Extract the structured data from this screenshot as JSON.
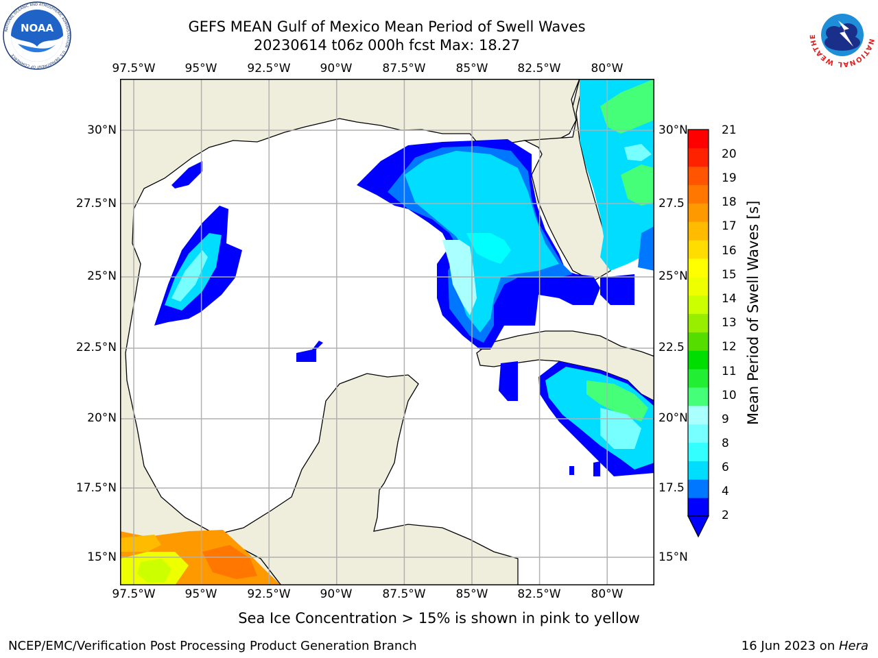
{
  "title_line1": "GEFS MEAN Gulf of Mexico Mean Period of Swell Waves",
  "title_line2": "20230614 t06z 000h fcst   Max: 18.27",
  "lon_labels": [
    "97.5°W",
    "95°W",
    "92.5°W",
    "90°W",
    "87.5°W",
    "85°W",
    "82.5°W",
    "80°W"
  ],
  "lat_labels_left": [
    "30°N",
    "27.5°N",
    "25°N",
    "22.5°N",
    "20°N",
    "17.5°N",
    "15°N"
  ],
  "lat_labels_right": [
    "30°N",
    "27.5",
    "25°N",
    "22.5",
    "20°N",
    "17.5",
    "15°N"
  ],
  "colorbar": {
    "label": "Mean Period of Swell Waves [s]",
    "ticks": [
      "21",
      "20",
      "19",
      "18",
      "17",
      "16",
      "15",
      "14",
      "13",
      "12",
      "11",
      "10",
      "9",
      "8",
      "6",
      "4",
      "2"
    ],
    "colors": [
      "#0000ff",
      "#0077ff",
      "#00ddff",
      "#33ffff",
      "#77ffff",
      "#aaffff",
      "#44ff77",
      "#22ee33",
      "#00dd00",
      "#55dd00",
      "#99ee00",
      "#ccff00",
      "#eeff00",
      "#ffff00",
      "#ffdd00",
      "#ffbb00",
      "#ff9900",
      "#ff7700",
      "#ff5500",
      "#ff2200",
      "#ff0000"
    ]
  },
  "caption": "Sea Ice Concentration > 15% is shown in pink to yellow",
  "credit_left": "NCEP/EMC/Verification Post Processing Product Generation Branch",
  "credit_date": "16 Jun 2023 on ",
  "credit_machine": "Hera",
  "logos": {
    "noaa_text": "NOAA",
    "noaa_ring_text": "NATIONAL OCEANIC AND ATMOSPHERIC ADMINISTRATION · U.S. DEPARTMENT OF COMMERCE",
    "nws_ring_text": "NATIONAL WEATHER SERVICE"
  },
  "land_color": "#efeedc",
  "ocean_color": "#ffffff",
  "grid_color": "#b0b0b0"
}
